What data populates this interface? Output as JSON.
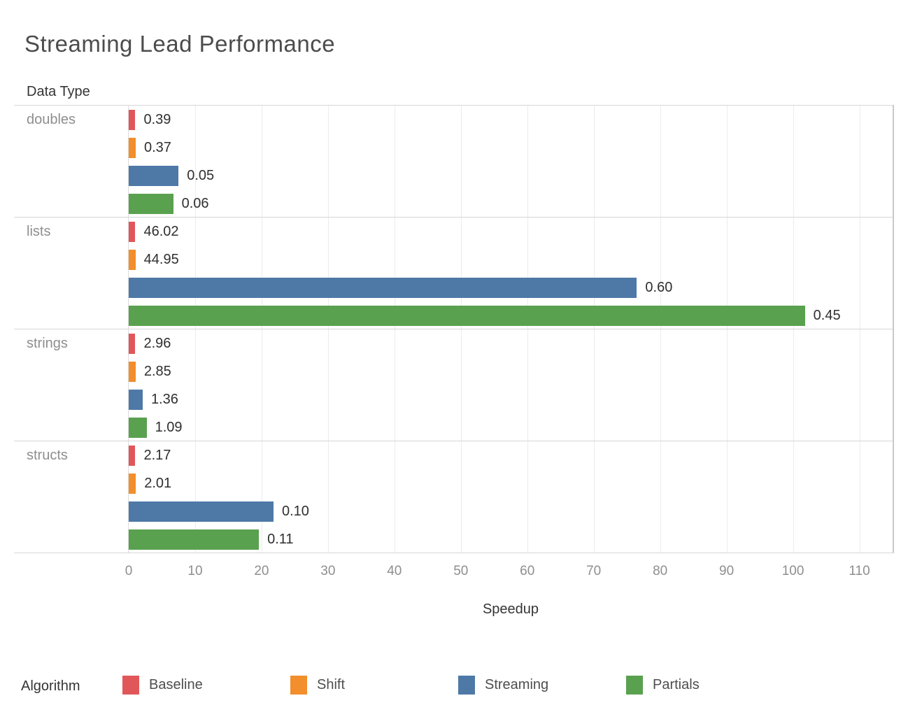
{
  "title": "Streaming Lead Performance",
  "column_header": "Data Type",
  "legend": {
    "title": "Algorithm",
    "items": [
      "Baseline",
      "Shift",
      "Streaming",
      "Partials"
    ]
  },
  "chart_data": {
    "type": "bar",
    "orientation": "horizontal",
    "title": "Streaming Lead Performance",
    "row_header": "Data Type",
    "xlabel": "Speedup",
    "categories": [
      "doubles",
      "lists",
      "strings",
      "structs"
    ],
    "series": [
      {
        "name": "Baseline",
        "color": "#e15759",
        "values": [
          1.0,
          1.0,
          1.0,
          1.0
        ],
        "bar_labels": [
          "0.39",
          "46.02",
          "2.96",
          "2.17"
        ]
      },
      {
        "name": "Shift",
        "color": "#f28e2b",
        "values": [
          1.05,
          1.02,
          1.04,
          1.08
        ],
        "bar_labels": [
          "0.37",
          "44.95",
          "2.85",
          "2.01"
        ]
      },
      {
        "name": "Streaming",
        "color": "#4e79a7",
        "values": [
          7.5,
          76.5,
          2.1,
          21.8
        ],
        "bar_labels": [
          "0.05",
          "0.60",
          "1.36",
          "0.10"
        ]
      },
      {
        "name": "Partials",
        "color": "#59a14f",
        "values": [
          6.7,
          101.8,
          2.7,
          19.6
        ],
        "bar_labels": [
          "0.06",
          "0.45",
          "1.09",
          "0.11"
        ]
      }
    ],
    "xlim": [
      0,
      115
    ],
    "xticks": [
      0,
      10,
      20,
      30,
      40,
      50,
      60,
      70,
      80,
      90,
      100,
      110
    ],
    "grid": true,
    "legend_position": "bottom"
  }
}
